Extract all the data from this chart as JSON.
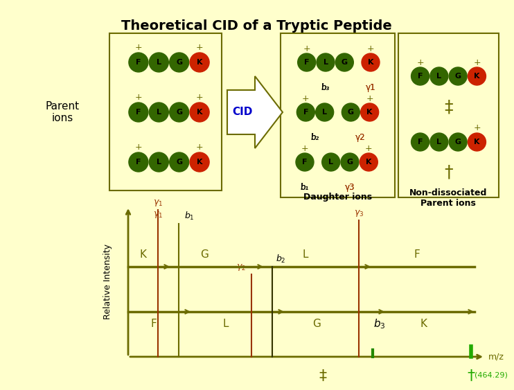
{
  "title": "Theoretical CID of a Tryptic Peptide",
  "bg_color": "#FFFFCC",
  "dark_green": "#6B6B00",
  "red_color": "#993300",
  "circle_green": "#336600",
  "circle_red": "#CC2200",
  "blue_color": "#0000CC",
  "light_gray": "#E8E8D0",
  "peptide": [
    "F",
    "L",
    "G",
    "K"
  ],
  "ylabel": "Relative Intensity",
  "xlabel": "m/z",
  "annotation_464": "(464.29)"
}
